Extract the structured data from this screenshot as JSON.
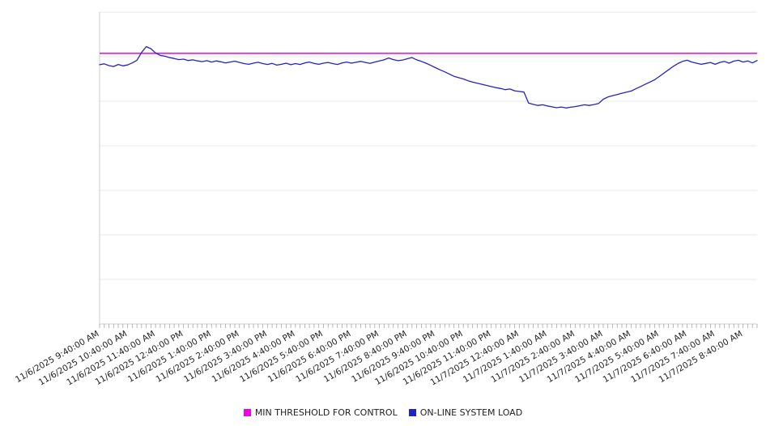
{
  "chart_data": {
    "type": "line",
    "title": "",
    "xlabel": "",
    "ylabel": "",
    "ylim": [
      0,
      140
    ],
    "y_gridline_step": 20,
    "grid": true,
    "legend_position": "bottom",
    "background": "#ffffff",
    "grid_color": "#e8e8e8",
    "axis_color": "#cccccc",
    "tick_color": "#999999",
    "label_color": "#222222",
    "x_tick_interval_points": 6,
    "x_tick_labels": [
      "11/6/2025 9:40:00 AM",
      "11/6/2025 10:40:00 AM",
      "11/6/2025 11:40:00 AM",
      "11/6/2025 12:40:00 PM",
      "11/6/2025 1:40:00 PM",
      "11/6/2025 2:40:00 PM",
      "11/6/2025 3:40:00 PM",
      "11/6/2025 4:40:00 PM",
      "11/6/2025 5:40:00 PM",
      "11/6/2025 6:40:00 PM",
      "11/6/2025 7:40:00 PM",
      "11/6/2025 8:40:00 PM",
      "11/6/2025 9:40:00 PM",
      "11/6/2025 10:40:00 PM",
      "11/6/2025 11:40:00 PM",
      "11/7/2025 12:40:00 AM",
      "11/7/2025 1:40:00 AM",
      "11/7/2025 2:40:00 AM",
      "11/7/2025 3:40:00 AM",
      "11/7/2025 4:40:00 AM",
      "11/7/2025 5:40:00 AM",
      "11/7/2025 6:40:00 AM",
      "11/7/2025 7:40:00 AM",
      "11/7/2025 8:40:00 AM"
    ],
    "series": [
      {
        "name": "MIN THRESHOLD FOR CONTROL",
        "type": "threshold",
        "value": 121.5,
        "color": "#ee00ee"
      },
      {
        "name": "ON-LINE SYSTEM LOAD",
        "type": "line",
        "color": "#2222cc",
        "values": [
          116.4,
          116.8,
          116.0,
          115.6,
          116.5,
          115.9,
          116.3,
          117.2,
          118.4,
          121.9,
          124.5,
          123.6,
          121.7,
          120.6,
          120.2,
          119.6,
          119.2,
          118.7,
          118.9,
          118.3,
          118.6,
          118.1,
          117.8,
          118.2,
          117.6,
          118.1,
          117.7,
          117.2,
          117.6,
          118.0,
          117.4,
          116.9,
          116.6,
          117.1,
          117.5,
          116.9,
          116.5,
          117.0,
          116.2,
          116.6,
          117.1,
          116.4,
          116.9,
          116.5,
          117.2,
          117.6,
          117.0,
          116.6,
          117.1,
          117.4,
          116.9,
          116.5,
          117.2,
          117.6,
          117.1,
          117.5,
          117.9,
          117.4,
          117.0,
          117.6,
          118.1,
          118.6,
          119.4,
          118.7,
          118.2,
          118.5,
          119.1,
          119.6,
          118.6,
          117.9,
          117.1,
          116.1,
          115.1,
          114.1,
          113.2,
          112.2,
          111.2,
          110.6,
          110.0,
          109.2,
          108.6,
          108.1,
          107.6,
          107.1,
          106.6,
          106.1,
          105.7,
          105.2,
          105.5,
          104.7,
          104.4,
          104.1,
          99.2,
          98.6,
          98.1,
          98.4,
          97.9,
          97.5,
          97.1,
          97.4,
          97.0,
          97.3,
          97.6,
          98.0,
          98.4,
          98.1,
          98.5,
          99.0,
          100.9,
          101.9,
          102.5,
          103.0,
          103.6,
          104.1,
          104.6,
          105.6,
          106.6,
          107.6,
          108.6,
          109.6,
          111.1,
          112.6,
          114.1,
          115.6,
          116.9,
          117.9,
          118.4,
          117.6,
          117.1,
          116.6,
          117.0,
          117.4,
          116.6,
          117.4,
          117.9,
          117.1,
          118.0,
          118.4,
          117.6,
          118.1,
          117.2,
          118.3
        ]
      }
    ]
  },
  "legend": {
    "items": [
      {
        "label": "MIN THRESHOLD FOR CONTROL"
      },
      {
        "label": "ON-LINE SYSTEM LOAD"
      }
    ]
  }
}
